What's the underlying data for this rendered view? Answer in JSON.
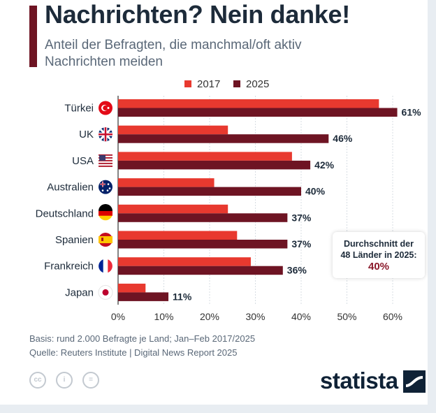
{
  "header": {
    "title": "Nachrichten? Nein danke!",
    "subtitle": "Anteil der Befragten, die manchmal/oft aktiv Nachrichten meiden"
  },
  "colors": {
    "series_2017": "#e8392f",
    "series_2025": "#6e1423",
    "accent": "#6e1423",
    "text_dark": "#1d2b3a"
  },
  "chart_data": {
    "type": "bar",
    "orientation": "horizontal",
    "categories": [
      "Türkei",
      "UK",
      "USA",
      "Australien",
      "Deutschland",
      "Spanien",
      "Frankreich",
      "Japan"
    ],
    "category_icons": [
      "flag-turkey-icon",
      "flag-uk-icon",
      "flag-usa-icon",
      "flag-australia-icon",
      "flag-germany-icon",
      "flag-spain-icon",
      "flag-france-icon",
      "flag-japan-icon"
    ],
    "series": [
      {
        "name": "2017",
        "values": [
          57,
          24,
          38,
          21,
          24,
          26,
          29,
          6
        ]
      },
      {
        "name": "2025",
        "values": [
          61,
          46,
          42,
          40,
          37,
          37,
          36,
          11
        ]
      }
    ],
    "data_labels_2025": [
      "61%",
      "46%",
      "42%",
      "40%",
      "37%",
      "37%",
      "36%",
      "11%"
    ],
    "xlim": [
      0,
      65
    ],
    "x_ticks": [
      0,
      10,
      20,
      30,
      40,
      50,
      60
    ],
    "x_tick_labels": [
      "0%",
      "10%",
      "20%",
      "30%",
      "40%",
      "50%",
      "60%"
    ],
    "grid": true,
    "legend_position": "top-center"
  },
  "average": {
    "label_line1": "Durchschnitt der",
    "label_line2": "48 Länder in 2025:",
    "value": "40%"
  },
  "footer": {
    "basis": "Basis: rund 2.000 Befragte je Land; Jan–Feb 2017/2025",
    "source": "Quelle: Reuters Institute | Digital News Report 2025"
  },
  "branding": {
    "logo_text": "statista",
    "license_icons": [
      "cc-icon",
      "attribution-icon",
      "no-derivatives-icon"
    ]
  }
}
